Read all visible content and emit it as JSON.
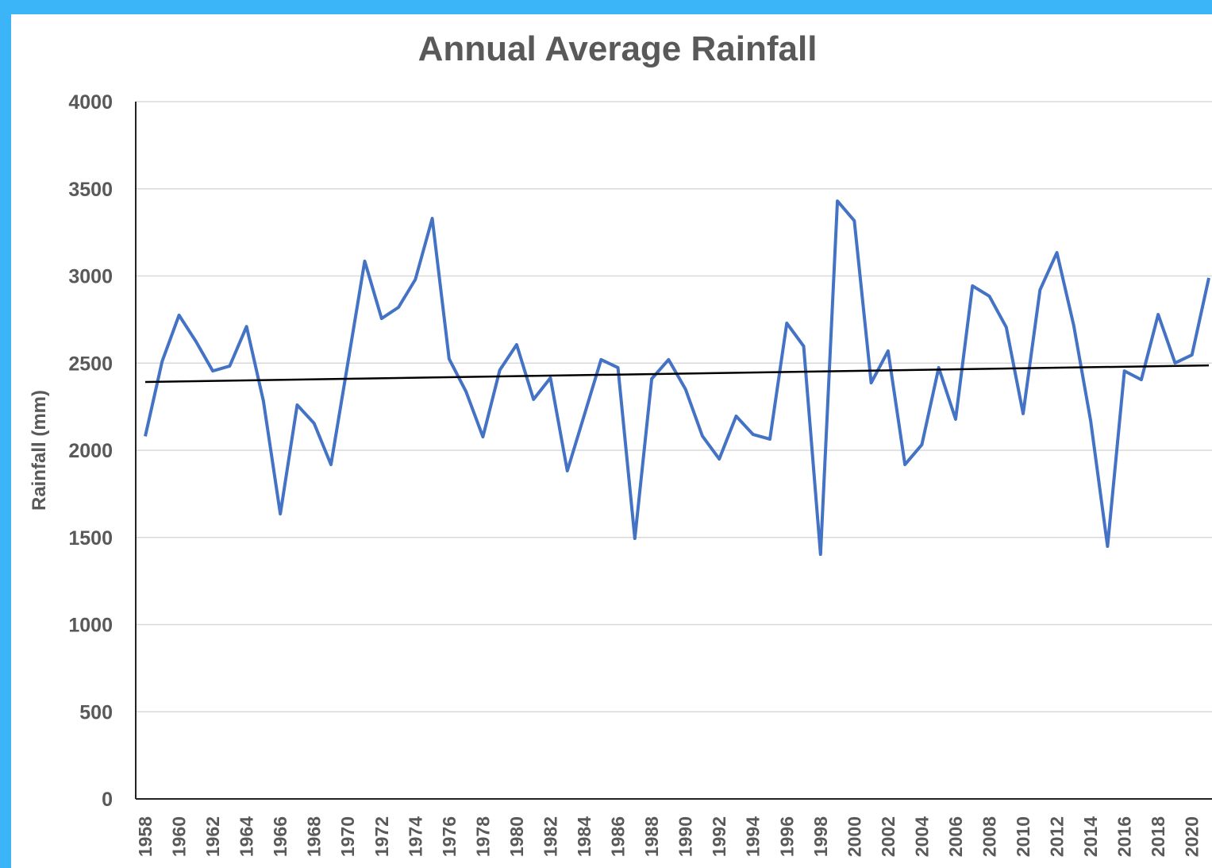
{
  "chart_data": {
    "type": "line",
    "title": "Annual Average Rainfall",
    "y_label": "Rainfall (mm)",
    "categories": [
      "1958",
      null,
      "1960",
      null,
      "1962",
      null,
      "1964",
      null,
      "1966",
      null,
      "1968",
      null,
      "1970",
      null,
      "1972",
      null,
      "1974",
      null,
      "1976",
      null,
      "1978",
      null,
      "1980",
      null,
      "1982",
      null,
      "1984",
      null,
      "1986",
      null,
      "1988",
      null,
      "1990",
      null,
      "1992",
      null,
      "1994",
      null,
      "1996",
      null,
      "1998",
      null,
      "2000",
      null,
      "2002",
      null,
      "2004",
      null,
      "2006",
      null,
      "2008",
      null,
      "2010",
      null,
      "2012",
      null,
      "2014",
      null,
      "2016",
      null,
      "2018",
      null,
      "2020",
      null
    ],
    "series": [
      {
        "name": "Rainfall",
        "color": "#4472c4",
        "values": [
          2080,
          2510,
          2775,
          2625,
          2455,
          2483,
          2710,
          2282,
          1635,
          2260,
          2155,
          1918,
          2500,
          3085,
          2756,
          2820,
          2980,
          3330,
          2524,
          2337,
          2077,
          2460,
          2606,
          2292,
          2415,
          1882,
          2200,
          2520,
          2474,
          1494,
          2410,
          2520,
          2351,
          2082,
          1950,
          2196,
          2091,
          2064,
          2729,
          2597,
          1403,
          3430,
          3317,
          2387,
          2570,
          1918,
          2032,
          2474,
          2178,
          2943,
          2884,
          2706,
          2210,
          2920,
          3134,
          2715,
          2169,
          1449,
          2455,
          2405,
          2779,
          2501,
          2547,
          2989
        ]
      }
    ],
    "trendline": {
      "color": "#000000",
      "values": [
        2392,
        2487
      ]
    },
    "ylim": [
      0,
      4000
    ],
    "yticks": [
      0,
      500,
      1000,
      1500,
      2000,
      2500,
      3000,
      3500,
      4000
    ],
    "grid": true
  }
}
